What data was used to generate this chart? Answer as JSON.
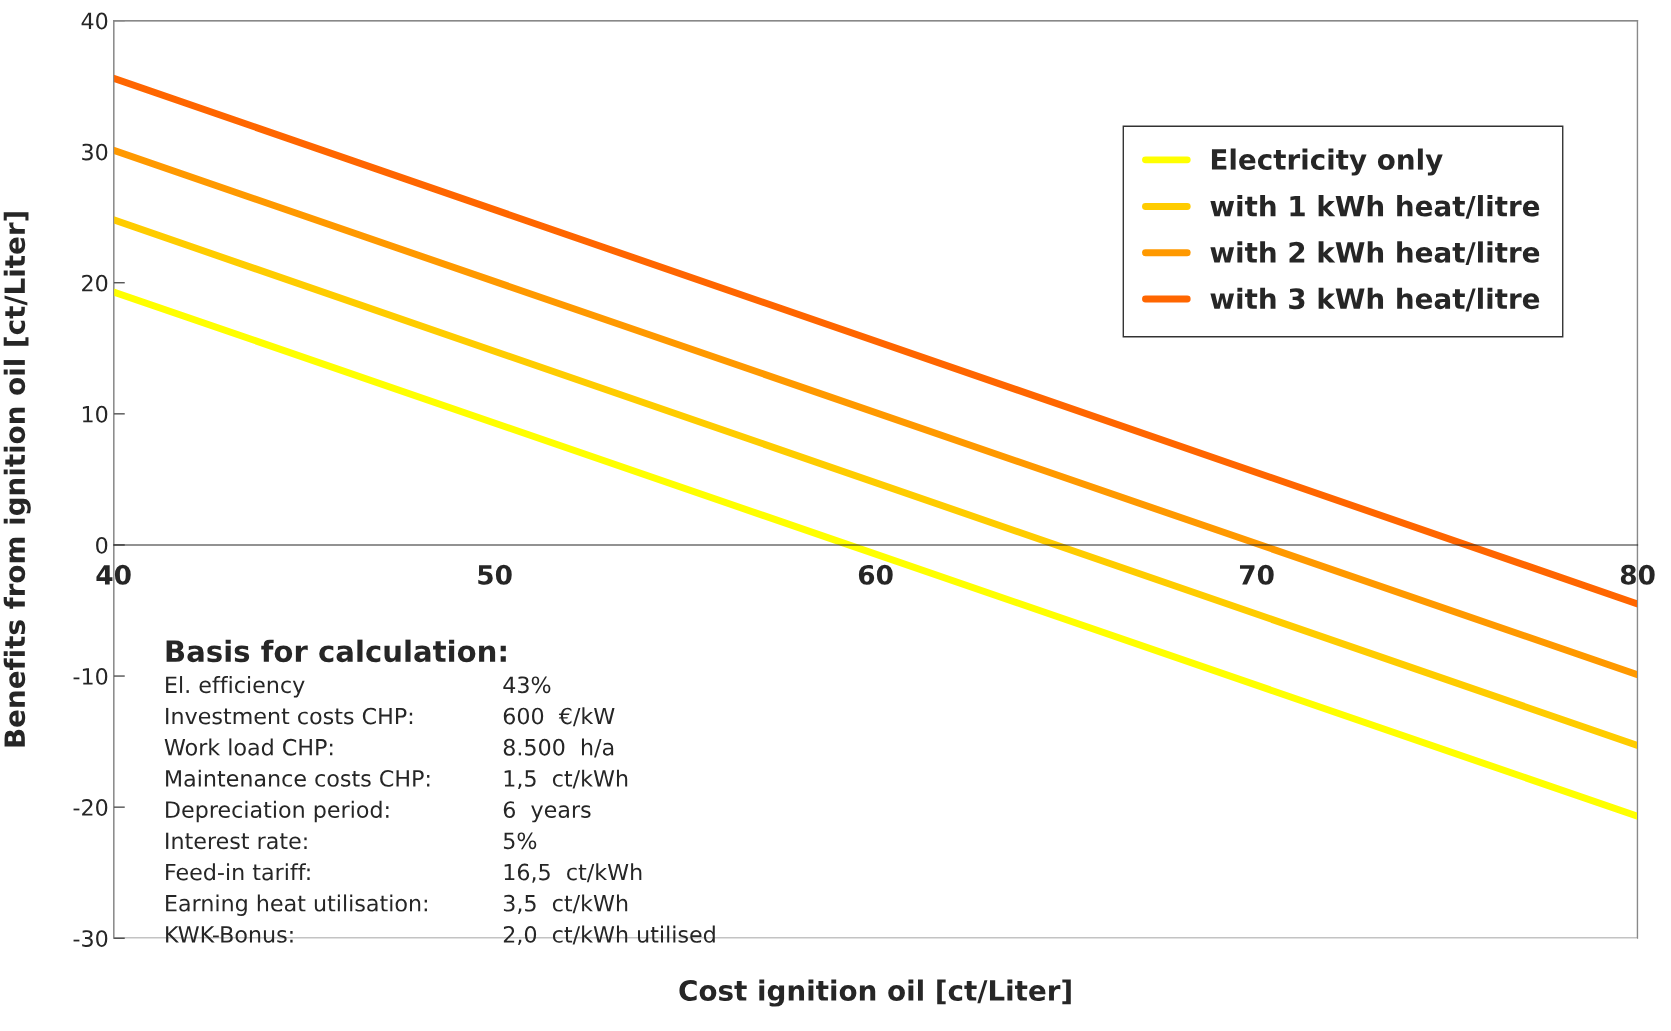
{
  "chart_data": {
    "type": "line",
    "xlabel": "Cost ignition oil [ct/Liter]",
    "ylabel": "Benefits from ignition oil [ct/Liter]",
    "x": [
      40,
      80
    ],
    "series": [
      {
        "name": "Electricity only",
        "color": "#ffff00",
        "values": [
          19.3,
          -20.7
        ]
      },
      {
        "name": "with 1 kWh heat/litre",
        "color": "#ffcc00",
        "values": [
          24.8,
          -15.3
        ]
      },
      {
        "name": "with 2 kWh heat/litre",
        "color": "#ff9900",
        "values": [
          30.1,
          -9.9
        ]
      },
      {
        "name": "with 3 kWh heat/litre",
        "color": "#ff6600",
        "values": [
          35.6,
          -4.5
        ]
      }
    ],
    "xlim": [
      40,
      80
    ],
    "xticks": [
      40,
      50,
      60,
      70,
      80
    ],
    "ylim": [
      -30,
      40
    ],
    "yticks": [
      -30,
      -20,
      -10,
      0,
      10,
      20,
      30,
      40
    ],
    "grid": false,
    "legend": "top right",
    "marker": "none",
    "line_style": "solid",
    "annotations": [
      "Basis for calculation:",
      "El. efficiency",
      "43%",
      "Investment costs CHP:",
      "600  €/kW",
      "Work load CHP:",
      "8.500  h/a",
      "Maintenance costs CHP:",
      "1,5  ct/kWh",
      "Depreciation period:",
      "6  years",
      "Interest rate:",
      "5%",
      "Feed-in tariff:",
      "16,5  ct/kWh",
      "Earning heat utilisation:",
      "3,5  ct/kWh",
      "KWK-Bonus:",
      "2,0  ct/kWh utilised"
    ]
  }
}
